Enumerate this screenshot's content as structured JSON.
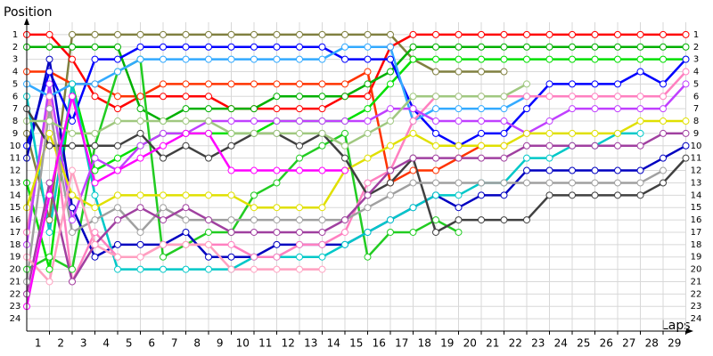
{
  "chart_data": {
    "type": "line",
    "y_label": "Position",
    "x_label": "Laps",
    "x": [
      0,
      1,
      2,
      3,
      4,
      5,
      6,
      7,
      8,
      9,
      10,
      11,
      12,
      13,
      14,
      15,
      16,
      17,
      18,
      19,
      20,
      21,
      22,
      23,
      24,
      25,
      26,
      27,
      28,
      29
    ],
    "xlim": [
      0,
      29
    ],
    "xticks": [
      1,
      2,
      3,
      4,
      5,
      6,
      7,
      8,
      9,
      10,
      11,
      12,
      13,
      14,
      15,
      16,
      17,
      18,
      19,
      20,
      21,
      22,
      23,
      24,
      25,
      26,
      27,
      28,
      29
    ],
    "ylim": [
      0,
      25
    ],
    "y_inverted": true,
    "yticks": [
      1,
      2,
      3,
      4,
      5,
      6,
      7,
      8,
      9,
      10,
      11,
      12,
      13,
      14,
      15,
      16,
      17,
      18,
      19,
      20,
      21,
      22,
      23,
      24
    ],
    "grid": true,
    "series": [
      {
        "color": "#808040",
        "values": [
          9,
          16,
          1,
          1,
          1,
          1,
          1,
          1,
          1,
          1,
          1,
          1,
          1,
          1,
          1,
          1,
          1,
          3,
          4,
          4,
          4,
          4,
          null,
          null,
          null,
          null,
          null,
          null,
          null,
          null
        ]
      },
      {
        "color": "#ff0000",
        "values": [
          1,
          1,
          3,
          6,
          7,
          6,
          6,
          6,
          6,
          7,
          7,
          7,
          7,
          7,
          6,
          6,
          2,
          1,
          1,
          1,
          1,
          1,
          1,
          1,
          1,
          1,
          1,
          1,
          1,
          1
        ]
      },
      {
        "color": "#ff3300",
        "values": [
          4,
          4,
          5,
          5,
          6,
          6,
          5,
          5,
          5,
          5,
          5,
          5,
          5,
          5,
          5,
          4,
          13,
          12,
          12,
          11,
          10,
          10,
          null,
          null,
          null,
          null,
          null,
          null,
          null,
          null
        ]
      },
      {
        "color": "#00b000",
        "values": [
          2,
          2,
          2,
          2,
          2,
          7,
          8,
          7,
          7,
          7,
          7,
          6,
          6,
          6,
          6,
          5,
          4,
          2,
          2,
          2,
          2,
          2,
          2,
          2,
          2,
          2,
          2,
          2,
          2,
          2
        ]
      },
      {
        "color": "#22cc22",
        "values": [
          20,
          19,
          20,
          10,
          4,
          3,
          19,
          18,
          17,
          17,
          14,
          13,
          11,
          10,
          9,
          19,
          17,
          17,
          16,
          17,
          null,
          null,
          null,
          null,
          null,
          null,
          null,
          null,
          null,
          null
        ]
      },
      {
        "color": "#00e000",
        "values": [
          13,
          20,
          5,
          12,
          11,
          10,
          9,
          9,
          9,
          9,
          9,
          8,
          8,
          8,
          8,
          7,
          5,
          3,
          3,
          3,
          3,
          3,
          3,
          3,
          3,
          3,
          3,
          3,
          3,
          3
        ]
      },
      {
        "color": "#0000ff",
        "values": [
          10,
          4,
          8,
          3,
          3,
          2,
          2,
          2,
          2,
          2,
          2,
          2,
          2,
          2,
          3,
          3,
          3,
          7,
          9,
          10,
          9,
          9,
          7,
          5,
          5,
          5,
          5,
          4,
          5,
          3
        ]
      },
      {
        "color": "#0000c0",
        "values": [
          11,
          3,
          15,
          19,
          18,
          18,
          18,
          17,
          19,
          19,
          19,
          18,
          18,
          18,
          18,
          17,
          16,
          15,
          14,
          15,
          14,
          14,
          12,
          12,
          12,
          12,
          12,
          12,
          11,
          10
        ]
      },
      {
        "color": "#33aaff",
        "values": [
          5,
          6,
          5,
          5,
          4,
          3,
          3,
          3,
          3,
          3,
          3,
          3,
          3,
          3,
          2,
          2,
          2,
          8,
          7,
          7,
          7,
          7,
          6,
          null,
          null,
          null,
          null,
          null,
          null,
          null
        ]
      },
      {
        "color": "#00c8c8",
        "values": [
          6,
          17,
          5,
          14,
          20,
          20,
          20,
          20,
          20,
          20,
          19,
          19,
          19,
          19,
          18,
          17,
          16,
          15,
          14,
          14,
          13,
          13,
          11,
          11,
          10,
          10,
          9,
          9,
          null,
          null
        ]
      },
      {
        "color": "#ff80c0",
        "values": [
          17,
          6,
          21,
          17,
          19,
          19,
          18,
          18,
          18,
          18,
          19,
          19,
          18,
          18,
          17,
          13,
          12,
          8,
          6,
          6,
          6,
          6,
          6,
          6,
          6,
          6,
          6,
          6,
          6,
          4
        ]
      },
      {
        "color": "#c040ff",
        "values": [
          18,
          5,
          16,
          11,
          12,
          10,
          9,
          9,
          8,
          8,
          8,
          8,
          8,
          8,
          8,
          8,
          7,
          7,
          8,
          8,
          8,
          8,
          9,
          8,
          7,
          7,
          7,
          7,
          7,
          5
        ]
      },
      {
        "color": "#e0e000",
        "values": [
          15,
          9,
          14,
          15,
          14,
          14,
          14,
          14,
          14,
          14,
          15,
          15,
          15,
          15,
          12,
          11,
          10,
          9,
          10,
          10,
          10,
          10,
          9,
          9,
          9,
          9,
          9,
          8,
          8,
          8
        ]
      },
      {
        "color": "#404040",
        "values": [
          7,
          10,
          10,
          10,
          10,
          9,
          11,
          10,
          11,
          10,
          9,
          9,
          10,
          9,
          11,
          14,
          13,
          11,
          17,
          16,
          16,
          16,
          16,
          14,
          14,
          14,
          14,
          14,
          13,
          11
        ]
      },
      {
        "color": "#a0a0a0",
        "values": [
          21,
          7,
          17,
          16,
          15,
          17,
          15,
          16,
          16,
          16,
          16,
          16,
          16,
          16,
          16,
          15,
          14,
          13,
          13,
          13,
          13,
          13,
          13,
          13,
          13,
          13,
          13,
          13,
          12,
          null
        ]
      },
      {
        "color": "#a040a0",
        "values": [
          22,
          13,
          21,
          18,
          16,
          15,
          16,
          15,
          16,
          17,
          17,
          17,
          17,
          17,
          16,
          14,
          12,
          11,
          11,
          11,
          11,
          11,
          10,
          10,
          10,
          10,
          10,
          10,
          9,
          9
        ]
      },
      {
        "color": "#a0c880",
        "values": [
          8,
          8,
          9,
          9,
          8,
          8,
          8,
          8,
          8,
          9,
          9,
          9,
          9,
          9,
          10,
          9,
          8,
          6,
          6,
          6,
          6,
          6,
          5,
          null,
          null,
          null,
          null,
          null,
          null,
          null
        ]
      },
      {
        "color": "#ffa0c0",
        "values": [
          19,
          21,
          12,
          18,
          19,
          19,
          18,
          18,
          18,
          20,
          20,
          20,
          20,
          20,
          null,
          null,
          null,
          null,
          null,
          null,
          null,
          null,
          null,
          null,
          null,
          null,
          null,
          null,
          null,
          null
        ]
      },
      {
        "color": "#ff00ff",
        "values": [
          23,
          14,
          6,
          13,
          12,
          11,
          10,
          9,
          9,
          12,
          12,
          12,
          12,
          12,
          12,
          null,
          null,
          null,
          null,
          null,
          null,
          null,
          null,
          null,
          null,
          null,
          null,
          null,
          null,
          null
        ]
      }
    ]
  }
}
